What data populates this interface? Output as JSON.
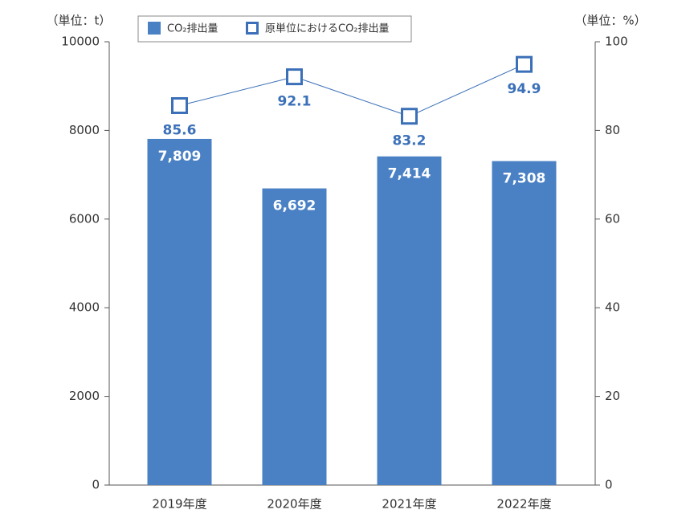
{
  "chart_data": {
    "type": "bar",
    "y_label": "（単位：t）",
    "y2_label": "（単位：%）",
    "categories": [
      "2019年度",
      "2020年度",
      "2021年度",
      "2022年度"
    ],
    "series": [
      {
        "name": "CO₂排出量",
        "type": "bar",
        "color": "#4a81c4",
        "values": [
          7809,
          6692,
          7414,
          7308
        ],
        "value_labels": [
          "7,809",
          "6,692",
          "7,414",
          "7,308"
        ]
      },
      {
        "name": "原単位におけるCO₂排出量",
        "type": "line",
        "axis": "y2",
        "color": "#3b70b8",
        "values": [
          85.6,
          92.1,
          83.2,
          94.9
        ]
      }
    ],
    "ylim": [
      0,
      10000
    ],
    "yticks": [
      0,
      2000,
      4000,
      6000,
      8000,
      10000
    ],
    "y2lim": [
      0,
      100
    ],
    "y2ticks": [
      0,
      20,
      40,
      60,
      80,
      100
    ]
  }
}
